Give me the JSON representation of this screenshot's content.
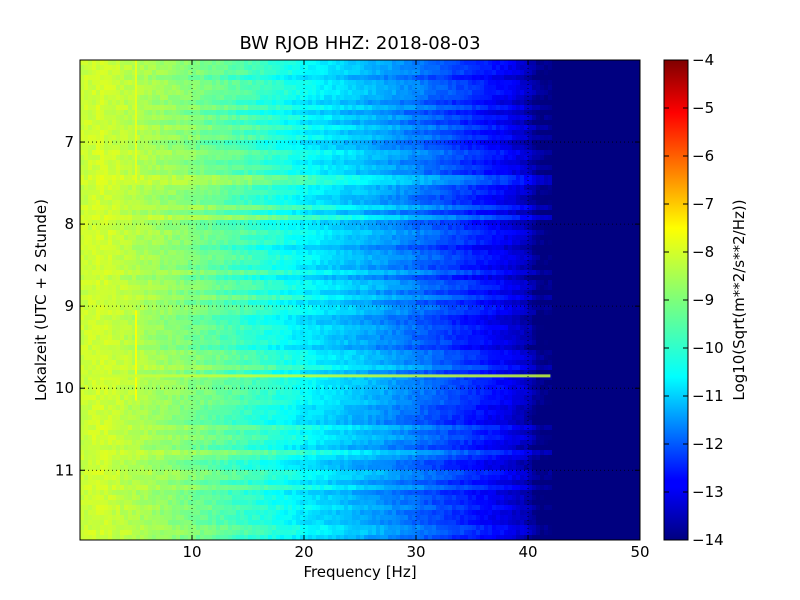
{
  "chart_data": {
    "type": "heatmap",
    "title": "BW RJOB HHZ: 2018-08-03",
    "xlabel": "Frequency [Hz]",
    "ylabel": "Lokalzeit (UTC + 2 Stunde)",
    "xlim": [
      0,
      50
    ],
    "ylim": [
      6.0,
      11.85
    ],
    "y_inverted": true,
    "x_ticks": [
      10,
      20,
      30,
      40,
      50
    ],
    "x_tick_labels": [
      "10",
      "20",
      "30",
      "40",
      "50"
    ],
    "y_ticks": [
      7,
      8,
      9,
      10,
      11
    ],
    "y_tick_labels": [
      "7",
      "8",
      "9",
      "10",
      "11"
    ],
    "grid": true,
    "colormap": "jet",
    "colorbar": {
      "label": "Log10(Sqrt(m**2/s**2/Hz))",
      "range": [
        -14,
        -4
      ],
      "ticks": [
        -4,
        -5,
        -6,
        -7,
        -8,
        -9,
        -10,
        -11,
        -12,
        -13,
        -14
      ],
      "tick_labels": [
        "−4",
        "−5",
        "−6",
        "−7",
        "−8",
        "−9",
        "−10",
        "−11",
        "−12",
        "−13",
        "−14"
      ]
    },
    "spectral_profile": {
      "frequency_hz": [
        0,
        2,
        5,
        10,
        15,
        20,
        25,
        30,
        35,
        38,
        40,
        41,
        42,
        50
      ],
      "value": [
        -8.3,
        -8.2,
        -8.5,
        -9.0,
        -9.6,
        -10.3,
        -10.9,
        -11.6,
        -12.4,
        -12.9,
        -13.4,
        -14.0,
        -14.0,
        -14.0
      ]
    },
    "features": [
      {
        "kind": "vertical-line",
        "frequency_hz": 5,
        "time_start": 9.05,
        "time_end": 10.15,
        "value": -7.8
      },
      {
        "kind": "horizontal-band",
        "time": 9.85,
        "frequency_start": 0,
        "frequency_end": 42,
        "value": -8.3
      },
      {
        "kind": "vertical-line",
        "frequency_hz": 5,
        "time_start": 6.0,
        "time_end": 7.5,
        "value": -8.0
      }
    ]
  }
}
